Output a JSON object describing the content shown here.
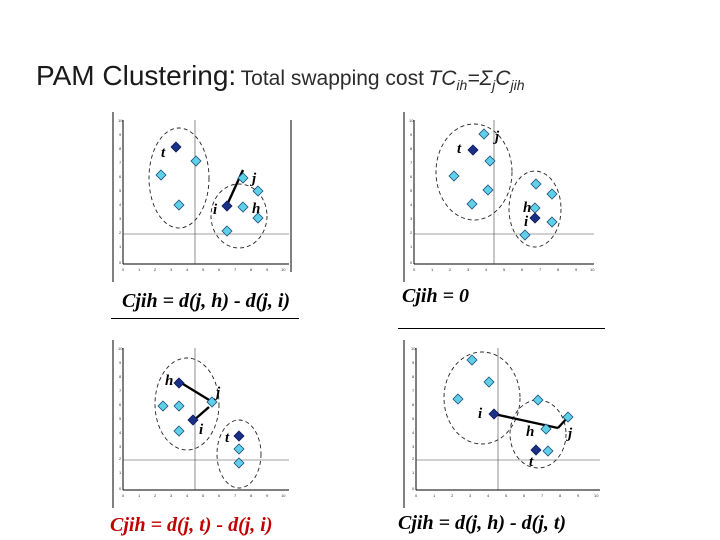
{
  "title": {
    "main": "PAM Clustering:",
    "sub": "Total swapping cost",
    "formula_lhs": "TC",
    "formula_lhs_sub": "ih",
    "formula_eq": "=",
    "formula_sigma": "Σ",
    "formula_sigma_sub": "j",
    "formula_rhs": "C",
    "formula_rhs_sub": "jih"
  },
  "colors": {
    "cluster_point": "#5fd0e8",
    "medoid": "#1a2f86",
    "caption_red": "#c00000",
    "caption_black": "#000000"
  },
  "panels": [
    {
      "id": "top-left",
      "labels": [
        "t",
        "i",
        "j",
        "h"
      ],
      "y_ticks": [
        "10",
        "9",
        "8",
        "7",
        "6",
        "5",
        "4",
        "3",
        "2",
        "1",
        "0"
      ],
      "x_ticks": [
        "0",
        "1",
        "2",
        "3",
        "4",
        "5",
        "6",
        "7",
        "8",
        "9",
        "10"
      ],
      "caption": "Cjih = d(j, h) - d(j, i)"
    },
    {
      "id": "top-right",
      "labels": [
        "t",
        "j",
        "h",
        "i"
      ],
      "y_ticks": [
        "10",
        "9",
        "8",
        "7",
        "6",
        "5",
        "4",
        "3",
        "2",
        "1",
        "0"
      ],
      "x_ticks": [
        "0",
        "1",
        "2",
        "3",
        "4",
        "5",
        "6",
        "7",
        "8",
        "9",
        "10"
      ],
      "caption": "Cjih = 0"
    },
    {
      "id": "bottom-left",
      "labels": [
        "h",
        "j",
        "i",
        "t"
      ],
      "y_ticks": [
        "10",
        "9",
        "8",
        "7",
        "6",
        "5",
        "4",
        "3",
        "2",
        "1",
        "0"
      ],
      "x_ticks": [
        "0",
        "1",
        "2",
        "3",
        "4",
        "5",
        "6",
        "7",
        "8",
        "9",
        "10"
      ],
      "caption": "Cjih = d(j, t) - d(j, i)"
    },
    {
      "id": "bottom-right",
      "labels": [
        "i",
        "h",
        "j",
        "t"
      ],
      "y_ticks": [
        "10",
        "9",
        "8",
        "7",
        "6",
        "5",
        "4",
        "3",
        "2",
        "1",
        "0"
      ],
      "x_ticks": [
        "0",
        "1",
        "2",
        "3",
        "4",
        "5",
        "6",
        "7",
        "8",
        "9",
        "10"
      ],
      "caption": "Cjih = d(j, h) - d(j, t)"
    }
  ]
}
